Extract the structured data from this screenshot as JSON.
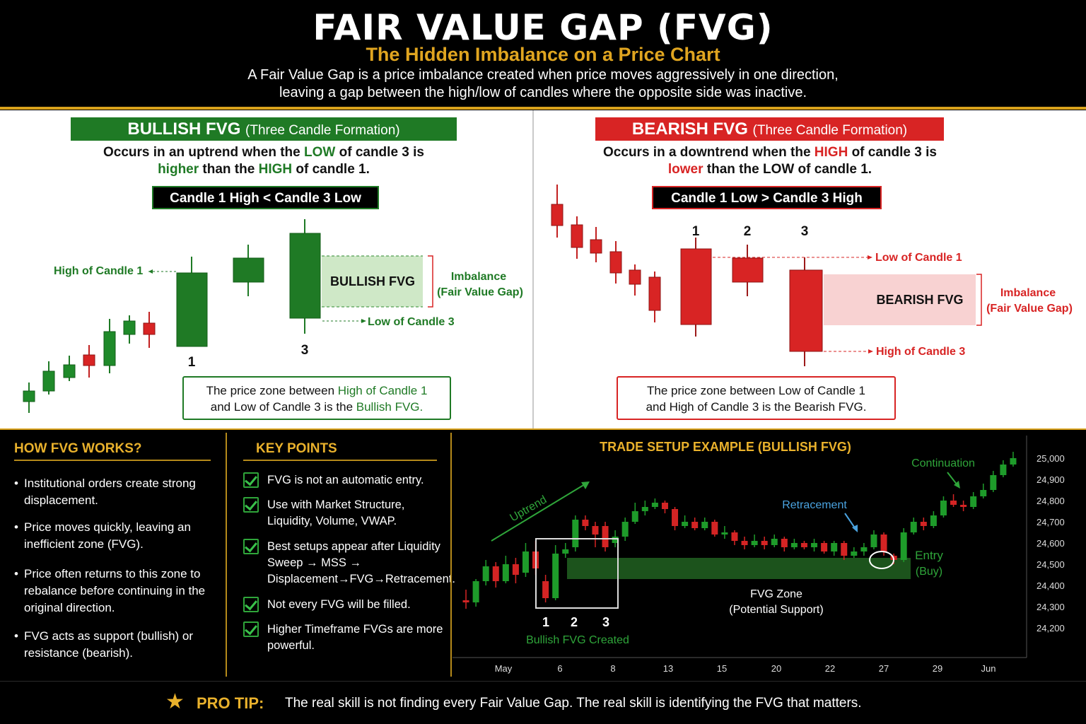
{
  "header": {
    "title": "FAIR VALUE GAP (FVG)",
    "subtitle": "The Hidden Imbalance on a Price Chart",
    "desc_line1": "A Fair Value Gap is a price imbalance created when price moves aggressively in one direction,",
    "desc_line2": "leaving a gap between the high/low of candles where the opposite side was inactive."
  },
  "bullish": {
    "banner_main": "BULLISH FVG",
    "banner_sub": "(Three Candle Formation)",
    "line1_a": "Occurs in an uptrend when the ",
    "line1_b": "LOW",
    "line1_c": " of candle 3 is",
    "line2_a": "higher",
    "line2_b": " than the ",
    "line2_c": "HIGH",
    "line2_d": " of candle 1.",
    "rule": "Candle 1 High < Candle 3 Low",
    "label_high1": "High of Candle 1",
    "label_low3": "Low of Candle 3",
    "zone_label": "BULLISH FVG",
    "imbalance": "Imbalance",
    "imbalance_sub": "(Fair Value Gap)",
    "num1": "1",
    "num3": "3",
    "note_a": "The price zone between ",
    "note_b": "High of Candle 1",
    "note_c": "and Low of Candle 3 is the ",
    "note_d": "Bullish FVG."
  },
  "bearish": {
    "banner_main": "BEARISH FVG",
    "banner_sub": "(Three Candle Formation)",
    "line1_a": "Occurs in a downtrend when the ",
    "line1_b": "HIGH",
    "line1_c": " of candle 3 is",
    "line2_a": "lower",
    "line2_b": " than the LOW of candle 1.",
    "rule": "Candle 1 Low > Candle 3 High",
    "label_low1": "Low of Candle 1",
    "label_high3": "High of Candle 3",
    "zone_label": "BEARISH FVG",
    "imbalance": "Imbalance",
    "imbalance_sub": "(Fair Value Gap)",
    "num1": "1",
    "num2": "2",
    "num3": "3",
    "note_line1": "The price zone between Low of Candle 1",
    "note_line2": "and High of Candle 3 is the Bearish FVG."
  },
  "how": {
    "title": "HOW FVG WORKS?",
    "bullets": [
      "Institutional orders create strong displacement.",
      "Price moves quickly, leaving an inefficient zone (FVG).",
      "Price often returns to this zone to rebalance before continuing in the original direction.",
      "FVG acts as support (bullish) or resistance (bearish)."
    ]
  },
  "key": {
    "title": "KEY POINTS",
    "points": [
      "FVG is not an automatic entry.",
      "Use with Market Structure, Liquidity, Volume, VWAP.",
      "Best setups appear after Liquidity Sweep → MSS → Displacement→FVG→Retracement.",
      "Not every FVG will be filled.",
      "Higher Timeframe FVGs are more powerful."
    ]
  },
  "chart": {
    "title": "TRADE SETUP EXAMPLE (BULLISH FVG)",
    "uptrend": "Uptrend",
    "retracement": "Retracement",
    "continuation": "Continuation",
    "entry": "Entry",
    "entry_sub": "(Buy)",
    "zone": "FVG Zone",
    "zone_sub": "(Potential Support)",
    "n1": "1",
    "n2": "2",
    "n3": "3",
    "created": "Bullish FVG Created",
    "colors": {
      "bull": "#1e9b2a",
      "bear": "#d42424",
      "zone": "#2f8a2f"
    }
  },
  "chart_data": {
    "type": "candlestick",
    "title": "TRADE SETUP EXAMPLE (BULLISH FVG)",
    "x_ticks": [
      "May",
      "6",
      "8",
      "13",
      "15",
      "20",
      "22",
      "27",
      "29",
      "Jun"
    ],
    "y_ticks": [
      "25,000",
      "24,900",
      "24,800",
      "24,700",
      "24,600",
      "24,500",
      "24,400",
      "24,300",
      "24,200"
    ],
    "ylim": [
      24150,
      25050
    ],
    "fvg_zone": [
      24430,
      24530
    ],
    "candles": [
      {
        "o": 24330,
        "c": 24320,
        "h": 24380,
        "l": 24290
      },
      {
        "o": 24320,
        "c": 24420,
        "h": 24430,
        "l": 24300
      },
      {
        "o": 24420,
        "c": 24490,
        "h": 24520,
        "l": 24400
      },
      {
        "o": 24490,
        "c": 24420,
        "h": 24510,
        "l": 24390
      },
      {
        "o": 24420,
        "c": 24500,
        "h": 24540,
        "l": 24410
      },
      {
        "o": 24500,
        "c": 24450,
        "h": 24530,
        "l": 24410
      },
      {
        "o": 24460,
        "c": 24560,
        "h": 24600,
        "l": 24440
      },
      {
        "o": 24560,
        "c": 24480,
        "h": 24610,
        "l": 24450
      },
      {
        "o": 24420,
        "c": 24340,
        "h": 24450,
        "l": 24320
      },
      {
        "o": 24340,
        "c": 24550,
        "h": 24590,
        "l": 24330
      },
      {
        "o": 24550,
        "c": 24570,
        "h": 24600,
        "l": 24530
      },
      {
        "o": 24580,
        "c": 24710,
        "h": 24730,
        "l": 24560
      },
      {
        "o": 24710,
        "c": 24680,
        "h": 24730,
        "l": 24660
      },
      {
        "o": 24680,
        "c": 24640,
        "h": 24700,
        "l": 24580
      },
      {
        "o": 24680,
        "c": 24580,
        "h": 24700,
        "l": 24560
      },
      {
        "o": 24600,
        "c": 24630,
        "h": 24660,
        "l": 24580
      },
      {
        "o": 24630,
        "c": 24700,
        "h": 24720,
        "l": 24610
      },
      {
        "o": 24700,
        "c": 24750,
        "h": 24790,
        "l": 24690
      },
      {
        "o": 24750,
        "c": 24770,
        "h": 24800,
        "l": 24730
      },
      {
        "o": 24770,
        "c": 24790,
        "h": 24810,
        "l": 24760
      },
      {
        "o": 24790,
        "c": 24760,
        "h": 24800,
        "l": 24740
      },
      {
        "o": 24760,
        "c": 24680,
        "h": 24770,
        "l": 24660
      },
      {
        "o": 24680,
        "c": 24700,
        "h": 24730,
        "l": 24670
      },
      {
        "o": 24700,
        "c": 24670,
        "h": 24720,
        "l": 24660
      },
      {
        "o": 24670,
        "c": 24700,
        "h": 24720,
        "l": 24660
      },
      {
        "o": 24700,
        "c": 24640,
        "h": 24710,
        "l": 24630
      },
      {
        "o": 24640,
        "c": 24650,
        "h": 24680,
        "l": 24620
      },
      {
        "o": 24650,
        "c": 24610,
        "h": 24660,
        "l": 24590
      },
      {
        "o": 24610,
        "c": 24590,
        "h": 24630,
        "l": 24570
      },
      {
        "o": 24590,
        "c": 24610,
        "h": 24640,
        "l": 24580
      },
      {
        "o": 24610,
        "c": 24590,
        "h": 24630,
        "l": 24570
      },
      {
        "o": 24590,
        "c": 24620,
        "h": 24640,
        "l": 24580
      },
      {
        "o": 24620,
        "c": 24580,
        "h": 24630,
        "l": 24560
      },
      {
        "o": 24580,
        "c": 24600,
        "h": 24620,
        "l": 24570
      },
      {
        "o": 24600,
        "c": 24580,
        "h": 24610,
        "l": 24570
      },
      {
        "o": 24580,
        "c": 24600,
        "h": 24620,
        "l": 24560
      },
      {
        "o": 24600,
        "c": 24560,
        "h": 24610,
        "l": 24550
      },
      {
        "o": 24560,
        "c": 24600,
        "h": 24610,
        "l": 24540
      },
      {
        "o": 24600,
        "c": 24540,
        "h": 24610,
        "l": 24520
      },
      {
        "o": 24540,
        "c": 24560,
        "h": 24580,
        "l": 24530
      },
      {
        "o": 24560,
        "c": 24580,
        "h": 24600,
        "l": 24540
      },
      {
        "o": 24580,
        "c": 24640,
        "h": 24660,
        "l": 24570
      },
      {
        "o": 24640,
        "c": 24560,
        "h": 24650,
        "l": 24540
      },
      {
        "o": 24540,
        "c": 24520,
        "h": 24550,
        "l": 24500
      },
      {
        "o": 24520,
        "c": 24650,
        "h": 24670,
        "l": 24510
      },
      {
        "o": 24650,
        "c": 24700,
        "h": 24720,
        "l": 24640
      },
      {
        "o": 24700,
        "c": 24680,
        "h": 24720,
        "l": 24660
      },
      {
        "o": 24680,
        "c": 24730,
        "h": 24750,
        "l": 24670
      },
      {
        "o": 24730,
        "c": 24800,
        "h": 24820,
        "l": 24720
      },
      {
        "o": 24800,
        "c": 24780,
        "h": 24830,
        "l": 24770
      },
      {
        "o": 24780,
        "c": 24770,
        "h": 24800,
        "l": 24750
      },
      {
        "o": 24770,
        "c": 24820,
        "h": 24840,
        "l": 24760
      },
      {
        "o": 24820,
        "c": 24850,
        "h": 24880,
        "l": 24810
      },
      {
        "o": 24850,
        "c": 24920,
        "h": 24940,
        "l": 24840
      },
      {
        "o": 24920,
        "c": 24970,
        "h": 24990,
        "l": 24910
      },
      {
        "o": 24970,
        "c": 25000,
        "h": 25030,
        "l": 24960
      }
    ]
  },
  "footer": {
    "label": "PRO TIP:",
    "tip": "The real skill is not finding every Fair Value Gap. The real skill is identifying the FVG that matters."
  }
}
